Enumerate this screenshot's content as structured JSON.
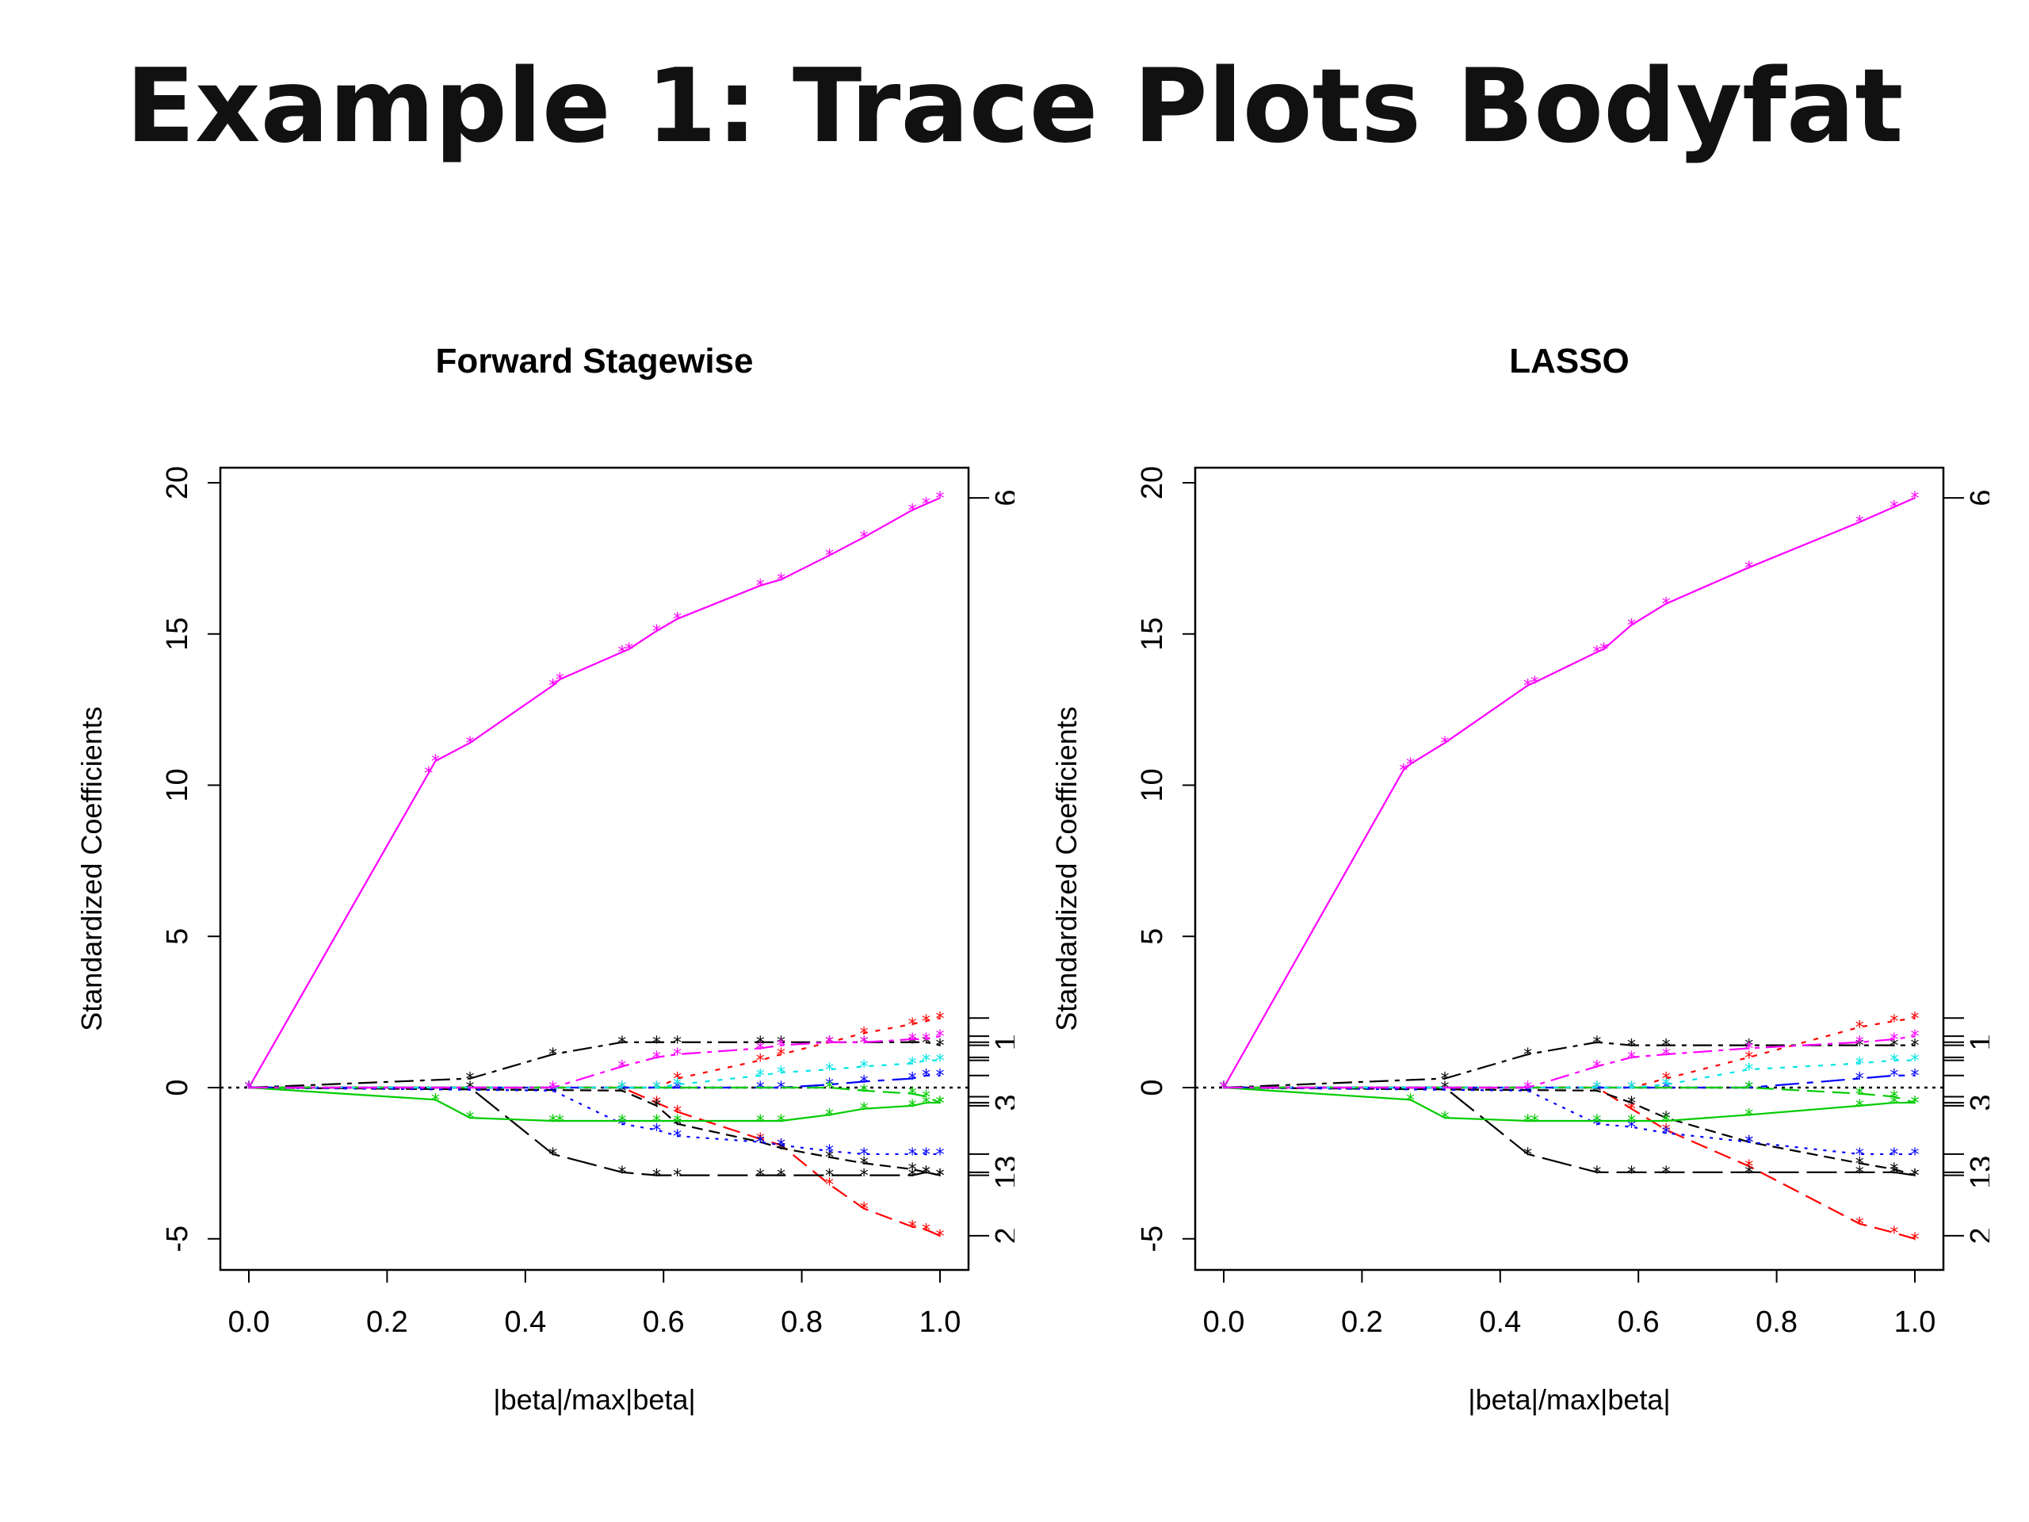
{
  "slide": {
    "title": "Example 1: Trace Plots Bodyfat"
  },
  "chart_data": [
    {
      "type": "line",
      "title": "Forward Stagewise",
      "xlabel": "|beta|/max|beta|",
      "ylabel": "Standardized Coefficients",
      "xlim": [
        0,
        1
      ],
      "ylim": [
        -6,
        20.5
      ],
      "x_ticks": [
        "0.0",
        "0.2",
        "0.4",
        "0.6",
        "0.8",
        "1.0"
      ],
      "y_ticks": [
        "-5",
        "0",
        "5",
        "10",
        "15",
        "20"
      ],
      "right_axis_labels": [
        "6",
        "1",
        "3",
        "13",
        "2"
      ],
      "right_axis_label_values": [
        19.5,
        1.5,
        -0.5,
        -2.8,
        -4.9
      ],
      "right_axis_ticks": [
        19.5,
        2.3,
        1.7,
        1.5,
        1.4,
        1.0,
        0.9,
        0.4,
        -0.3,
        -0.5,
        -0.6,
        -2.2,
        -2.8,
        -2.9,
        -4.9
      ],
      "zero_line": true,
      "series": [
        {
          "color": "#ff00ff",
          "x": [
            0,
            0.26,
            0.27,
            0.32,
            0.44,
            0.45,
            0.54,
            0.55,
            0.59,
            0.62,
            0.74,
            0.77,
            0.84,
            0.89,
            0.96,
            0.98,
            1.0
          ],
          "values": [
            0,
            10.4,
            10.8,
            11.4,
            13.3,
            13.5,
            14.4,
            14.5,
            15.1,
            15.5,
            16.6,
            16.8,
            17.6,
            18.2,
            19.1,
            19.3,
            19.5
          ]
        },
        {
          "color": "#ff0000",
          "x": [
            0,
            0.54,
            0.59,
            0.62,
            0.74,
            0.77,
            0.84,
            0.89,
            0.96,
            0.98,
            1.0
          ],
          "values": [
            0,
            0,
            -0.5,
            -0.8,
            -1.7,
            -1.9,
            -3.2,
            -4.0,
            -4.6,
            -4.7,
            -4.9
          ]
        },
        {
          "color": "#ff0000",
          "x": [
            0,
            0.59,
            0.62,
            0.74,
            0.77,
            0.84,
            0.89,
            0.96,
            0.98,
            1.0
          ],
          "values": [
            0,
            0,
            0.3,
            0.9,
            1.1,
            1.5,
            1.8,
            2.1,
            2.2,
            2.3
          ]
        },
        {
          "color": "#000000",
          "x": [
            0,
            0.32,
            0.44,
            0.54,
            0.59,
            0.62,
            0.74,
            0.77,
            0.84,
            0.89,
            0.96,
            0.98,
            1.0
          ],
          "values": [
            0,
            0.3,
            1.1,
            1.5,
            1.5,
            1.5,
            1.5,
            1.5,
            1.5,
            1.5,
            1.5,
            1.5,
            1.4
          ]
        },
        {
          "color": "#000000",
          "x": [
            0,
            0.32,
            0.44,
            0.54,
            0.59,
            0.62,
            0.74,
            0.77,
            0.84,
            0.89,
            0.96,
            0.98,
            1.0
          ],
          "values": [
            0,
            0,
            -2.2,
            -2.8,
            -2.9,
            -2.9,
            -2.9,
            -2.9,
            -2.9,
            -2.9,
            -2.9,
            -2.8,
            -2.9
          ]
        },
        {
          "color": "#000000",
          "x": [
            0,
            0.54,
            0.59,
            0.62,
            0.74,
            0.77,
            0.84,
            0.89,
            0.96,
            0.98,
            1.0
          ],
          "values": [
            0,
            -0.1,
            -0.6,
            -1.2,
            -1.8,
            -2.0,
            -2.3,
            -2.5,
            -2.7,
            -2.8,
            -2.9
          ]
        },
        {
          "color": "#0000ff",
          "x": [
            0,
            0.44,
            0.54,
            0.59,
            0.62,
            0.74,
            0.77,
            0.84,
            0.89,
            0.96,
            0.98,
            1.0
          ],
          "values": [
            0,
            -0.1,
            -1.2,
            -1.4,
            -1.6,
            -1.8,
            -1.9,
            -2.1,
            -2.2,
            -2.2,
            -2.2,
            -2.2
          ]
        },
        {
          "color": "#0000ff",
          "x": [
            0,
            0.62,
            0.74,
            0.77,
            0.84,
            0.89,
            0.96,
            0.98,
            1.0
          ],
          "values": [
            0,
            0,
            0,
            0,
            0.1,
            0.2,
            0.3,
            0.4,
            0.4
          ]
        },
        {
          "color": "#00cc00",
          "x": [
            0,
            0.27,
            0.32,
            0.44,
            0.45,
            0.54,
            0.59,
            0.62,
            0.74,
            0.77,
            0.84,
            0.89,
            0.96,
            0.98,
            1.0
          ],
          "values": [
            0,
            -0.4,
            -1.0,
            -1.1,
            -1.1,
            -1.1,
            -1.1,
            -1.1,
            -1.1,
            -1.1,
            -0.9,
            -0.7,
            -0.6,
            -0.5,
            -0.5
          ]
        },
        {
          "color": "#00cc00",
          "x": [
            0,
            0.84,
            0.89,
            0.96,
            0.98,
            1.0
          ],
          "values": [
            0,
            0,
            -0.1,
            -0.2,
            -0.3,
            -0.5
          ]
        },
        {
          "color": "#00e5e5",
          "x": [
            0,
            0.54,
            0.59,
            0.62,
            0.74,
            0.77,
            0.84,
            0.89,
            0.96,
            0.98,
            1.0
          ],
          "values": [
            0,
            0,
            0,
            0.1,
            0.4,
            0.5,
            0.6,
            0.7,
            0.8,
            0.9,
            0.9
          ]
        },
        {
          "color": "#ff00ff",
          "x": [
            0,
            0.44,
            0.54,
            0.59,
            0.62,
            0.74,
            0.77,
            0.84,
            0.89,
            0.96,
            0.98,
            1.0
          ],
          "values": [
            0,
            0,
            0.7,
            1.0,
            1.1,
            1.3,
            1.4,
            1.5,
            1.5,
            1.6,
            1.6,
            1.7
          ]
        }
      ]
    },
    {
      "type": "line",
      "title": "LASSO",
      "xlabel": "|beta|/max|beta|",
      "ylabel": "Standardized Coefficients",
      "xlim": [
        0,
        1
      ],
      "ylim": [
        -6,
        20.5
      ],
      "x_ticks": [
        "0.0",
        "0.2",
        "0.4",
        "0.6",
        "0.8",
        "1.0"
      ],
      "y_ticks": [
        "-5",
        "0",
        "5",
        "10",
        "15",
        "20"
      ],
      "right_axis_labels": [
        "6",
        "1",
        "3",
        "13",
        "2"
      ],
      "right_axis_label_values": [
        19.5,
        1.5,
        -0.5,
        -2.8,
        -4.9
      ],
      "right_axis_ticks": [
        19.5,
        2.3,
        1.7,
        1.5,
        1.4,
        1.0,
        0.9,
        0.4,
        -0.3,
        -0.5,
        -0.6,
        -2.2,
        -2.8,
        -2.9,
        -4.9
      ],
      "zero_line": true,
      "series": [
        {
          "color": "#ff00ff",
          "x": [
            0,
            0.26,
            0.27,
            0.32,
            0.44,
            0.45,
            0.54,
            0.55,
            0.59,
            0.64,
            0.76,
            0.92,
            0.97,
            1.0
          ],
          "values": [
            0,
            10.5,
            10.7,
            11.4,
            13.3,
            13.4,
            14.4,
            14.5,
            15.3,
            16.0,
            17.2,
            18.7,
            19.2,
            19.5
          ]
        },
        {
          "color": "#ff0000",
          "x": [
            0,
            0.54,
            0.59,
            0.64,
            0.76,
            0.92,
            0.97,
            1.0
          ],
          "values": [
            0,
            0,
            -0.7,
            -1.4,
            -2.6,
            -4.5,
            -4.8,
            -5.0
          ]
        },
        {
          "color": "#ff0000",
          "x": [
            0,
            0.59,
            0.64,
            0.76,
            0.92,
            0.97,
            1.0
          ],
          "values": [
            0,
            0,
            0.3,
            1.0,
            2.0,
            2.2,
            2.3
          ]
        },
        {
          "color": "#000000",
          "x": [
            0,
            0.32,
            0.44,
            0.54,
            0.59,
            0.64,
            0.76,
            0.92,
            0.97,
            1.0
          ],
          "values": [
            0,
            0.3,
            1.1,
            1.5,
            1.4,
            1.4,
            1.4,
            1.4,
            1.4,
            1.4
          ]
        },
        {
          "color": "#000000",
          "x": [
            0,
            0.32,
            0.44,
            0.54,
            0.59,
            0.64,
            0.76,
            0.92,
            0.97,
            1.0
          ],
          "values": [
            0,
            0,
            -2.2,
            -2.8,
            -2.8,
            -2.8,
            -2.8,
            -2.8,
            -2.8,
            -2.9
          ]
        },
        {
          "color": "#000000",
          "x": [
            0,
            0.54,
            0.59,
            0.64,
            0.76,
            0.92,
            0.97,
            1.0
          ],
          "values": [
            0,
            -0.1,
            -0.5,
            -1.0,
            -1.8,
            -2.5,
            -2.7,
            -2.9
          ]
        },
        {
          "color": "#0000ff",
          "x": [
            0,
            0.44,
            0.54,
            0.59,
            0.64,
            0.76,
            0.92,
            0.97,
            1.0
          ],
          "values": [
            0,
            -0.1,
            -1.2,
            -1.3,
            -1.5,
            -1.8,
            -2.2,
            -2.2,
            -2.2
          ]
        },
        {
          "color": "#0000ff",
          "x": [
            0,
            0.64,
            0.76,
            0.92,
            0.97,
            1.0
          ],
          "values": [
            0,
            0,
            0,
            0.3,
            0.4,
            0.4
          ]
        },
        {
          "color": "#00cc00",
          "x": [
            0,
            0.27,
            0.32,
            0.44,
            0.45,
            0.54,
            0.59,
            0.64,
            0.76,
            0.92,
            0.97,
            1.0
          ],
          "values": [
            0,
            -0.4,
            -1.0,
            -1.1,
            -1.1,
            -1.1,
            -1.1,
            -1.1,
            -0.9,
            -0.6,
            -0.5,
            -0.5
          ]
        },
        {
          "color": "#00cc00",
          "x": [
            0,
            0.76,
            0.92,
            0.97,
            1.0
          ],
          "values": [
            0,
            0,
            -0.2,
            -0.3,
            -0.5
          ]
        },
        {
          "color": "#00e5e5",
          "x": [
            0,
            0.54,
            0.59,
            0.64,
            0.76,
            0.92,
            0.97,
            1.0
          ],
          "values": [
            0,
            0,
            0,
            0.1,
            0.6,
            0.8,
            0.9,
            0.9
          ]
        },
        {
          "color": "#ff00ff",
          "x": [
            0,
            0.44,
            0.54,
            0.59,
            0.64,
            0.76,
            0.92,
            0.97,
            1.0
          ],
          "values": [
            0,
            0,
            0.7,
            1.0,
            1.1,
            1.3,
            1.5,
            1.6,
            1.7
          ]
        }
      ]
    }
  ]
}
